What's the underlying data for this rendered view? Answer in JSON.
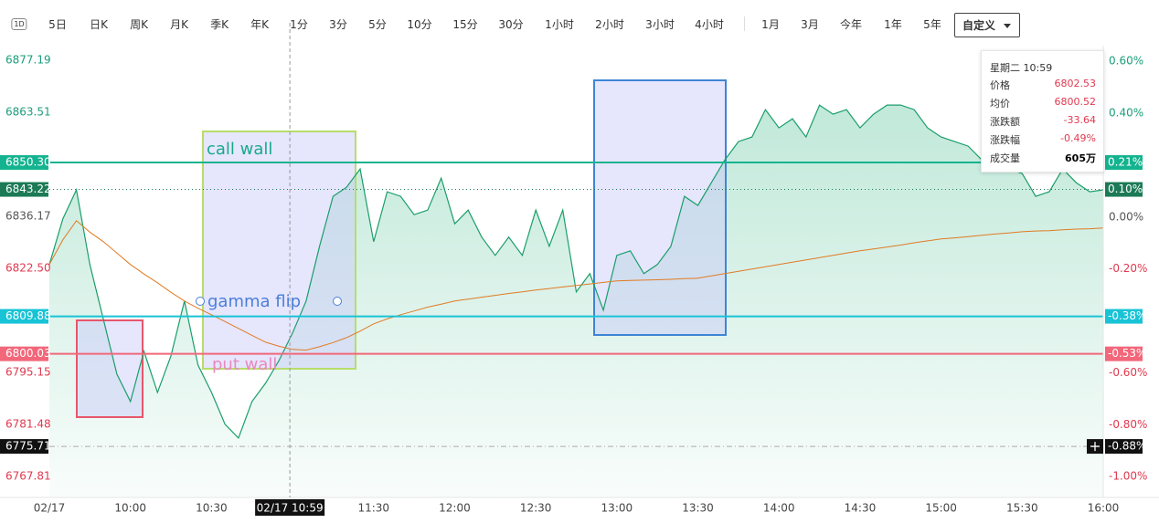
{
  "toolbar": {
    "buttons": [
      "1D",
      "5日",
      "日K",
      "周K",
      "月K",
      "季K",
      "年K",
      "1分",
      "3分",
      "5分",
      "10分",
      "15分",
      "30分",
      "1小时",
      "2小时",
      "3小时",
      "4小时",
      "1月",
      "3月",
      "今年",
      "1年",
      "5年",
      "自定义"
    ]
  },
  "chart_data": {
    "type": "line",
    "x": [
      "09:30",
      "09:35",
      "09:40",
      "09:45",
      "09:50",
      "09:55",
      "10:00",
      "10:05",
      "10:10",
      "10:15",
      "10:20",
      "10:25",
      "10:30",
      "10:35",
      "10:40",
      "10:45",
      "10:50",
      "10:55",
      "11:00",
      "11:05",
      "11:10",
      "11:15",
      "11:20",
      "11:25",
      "11:30",
      "11:35",
      "11:40",
      "11:45",
      "11:50",
      "11:55",
      "12:00",
      "12:05",
      "12:10",
      "12:15",
      "12:20",
      "12:25",
      "12:30",
      "12:35",
      "12:40",
      "12:45",
      "12:50",
      "12:55",
      "13:00",
      "13:05",
      "13:10",
      "13:15",
      "13:20",
      "13:25",
      "13:30",
      "13:35",
      "13:40",
      "13:45",
      "13:50",
      "13:55",
      "14:00",
      "14:05",
      "14:10",
      "14:15",
      "14:20",
      "14:25",
      "14:30",
      "14:35",
      "14:40",
      "14:45",
      "14:50",
      "14:55",
      "15:00",
      "15:05",
      "15:10",
      "15:15",
      "15:20",
      "15:25",
      "15:30",
      "15:35",
      "15:40",
      "15:45",
      "15:50",
      "15:55",
      "16:00"
    ],
    "xlim": [
      "09:30",
      "16:00"
    ],
    "xticks": [
      {
        "value": "09:30",
        "label": "02/17"
      },
      "10:00",
      "10:30",
      "11:30",
      "12:00",
      "12:30",
      "13:00",
      "13:30",
      "14:00",
      "14:30",
      "15:00",
      "15:30",
      "16:00"
    ],
    "ylim": [
      6762.3,
      6881.0
    ],
    "yticks": [
      6877.19,
      6863.51,
      6836.17,
      {
        "value": 6822.5,
        "label": "6822.50"
      },
      6795.15,
      6781.48,
      6767.81
    ],
    "y2lim": [
      -1.08,
      0.66
    ],
    "y2ticks": [
      {
        "value": 0.6,
        "label": "0.60%"
      },
      {
        "value": 0.4,
        "label": "0.40%"
      },
      {
        "value": 0,
        "label": "0.00%"
      },
      {
        "value": -0.2,
        "label": "-0.20%"
      },
      {
        "value": -0.6,
        "label": "-0.60%"
      },
      {
        "value": -0.8,
        "label": "-0.80%"
      },
      {
        "value": -1,
        "label": "-1.00%"
      }
    ],
    "series": [
      {
        "color": "#1a9e6a",
        "area": true,
        "values": [
          6823.5,
          6835.5,
          6843.1,
          6823.5,
          6809.1,
          6794.7,
          6787.5,
          6800.7,
          6789.9,
          6799.5,
          6813.9,
          6797.1,
          6789.9,
          6781.5,
          6777.9,
          6787.5,
          6792.3,
          6798.3,
          6805.5,
          6813.9,
          6828.3,
          6841.4,
          6843.8,
          6848.6,
          6829.5,
          6842.6,
          6841.4,
          6836.6,
          6837.8,
          6846.2,
          6834.2,
          6837.8,
          6830.7,
          6825.9,
          6830.7,
          6825.9,
          6837.8,
          6828.3,
          6837.8,
          6816.3,
          6821.1,
          6811.5,
          6825.9,
          6827.1,
          6821.1,
          6823.5,
          6828.3,
          6841.4,
          6839.0,
          6845.0,
          6851.0,
          6855.8,
          6857.0,
          6864.2,
          6859.4,
          6861.8,
          6857.0,
          6865.4,
          6863.0,
          6864.2,
          6859.4,
          6863.0,
          6865.4,
          6865.4,
          6864.2,
          6859.4,
          6857.0,
          6855.8,
          6854.6,
          6851.0,
          6852.2,
          6848.6,
          6847.4,
          6841.4,
          6842.6,
          6848.6,
          6845.0,
          6842.6,
          6843.1
        ]
      },
      {
        "color": "#e07b22",
        "area": false,
        "values": [
          6823.5,
          6830,
          6835,
          6832,
          6829.5,
          6826.5,
          6823.5,
          6821,
          6818.7,
          6816.2,
          6813.9,
          6812,
          6810.3,
          6808.5,
          6806.7,
          6804.9,
          6803.1,
          6802,
          6801.2,
          6801,
          6801.9,
          6803,
          6804.3,
          6806,
          6807.9,
          6809.2,
          6810.3,
          6811.3,
          6812.3,
          6813.1,
          6813.9,
          6814.4,
          6814.9,
          6815.4,
          6815.9,
          6816.3,
          6816.8,
          6817.2,
          6817.6,
          6818,
          6818.4,
          6818.8,
          6819.2,
          6819.3,
          6819.4,
          6819.5,
          6819.6,
          6819.8,
          6819.9,
          6820.5,
          6821.1,
          6821.7,
          6822.3,
          6822.9,
          6823.5,
          6824.1,
          6824.7,
          6825.3,
          6825.9,
          6826.5,
          6827.1,
          6827.6,
          6828.1,
          6828.6,
          6829.2,
          6829.7,
          6830.2,
          6830.5,
          6830.8,
          6831.2,
          6831.5,
          6831.8,
          6832.1,
          6832.3,
          6832.4,
          6832.6,
          6832.8,
          6832.9,
          6833.1
        ]
      }
    ],
    "levels": [
      {
        "value": 6850.3,
        "label": "6850.30",
        "pct": {
          "value": 0.21,
          "label": "0.21%"
        },
        "color": "#14b38f",
        "dotted": false
      },
      {
        "value": 6843.22,
        "label": "6843.22",
        "pct": {
          "value": 0.1,
          "label": "0.10%"
        },
        "color": "#1c7a56",
        "dotted": true
      },
      {
        "value": 6809.88,
        "label": "6809.88",
        "pct": {
          "value": -0.38,
          "label": "-0.38%"
        },
        "color": "#19c3d6",
        "dotted": false
      },
      {
        "value": 6800.03,
        "label": "6800.03",
        "pct": {
          "value": -0.53,
          "label": "-0.53%"
        },
        "color": "#f2677a",
        "dotted": false
      }
    ],
    "crosshair": {
      "x": "10:59",
      "x_label": "02/17 10:59",
      "y": {
        "value": 6775.71,
        "label": "6775.71"
      },
      "y2": {
        "value": -0.88,
        "label": "-0.88%"
      }
    }
  },
  "annotations": [
    "call wall",
    "gamma flip",
    "put wall"
  ],
  "tooltip": {
    "title": "星期二 10:59",
    "rows": [
      [
        "价格",
        "6802.53"
      ],
      [
        "均价",
        "6800.52"
      ],
      [
        "涨跌额",
        "-33.64"
      ],
      [
        "涨跌幅",
        "-0.49%"
      ],
      [
        "成交量",
        "605万"
      ]
    ]
  }
}
